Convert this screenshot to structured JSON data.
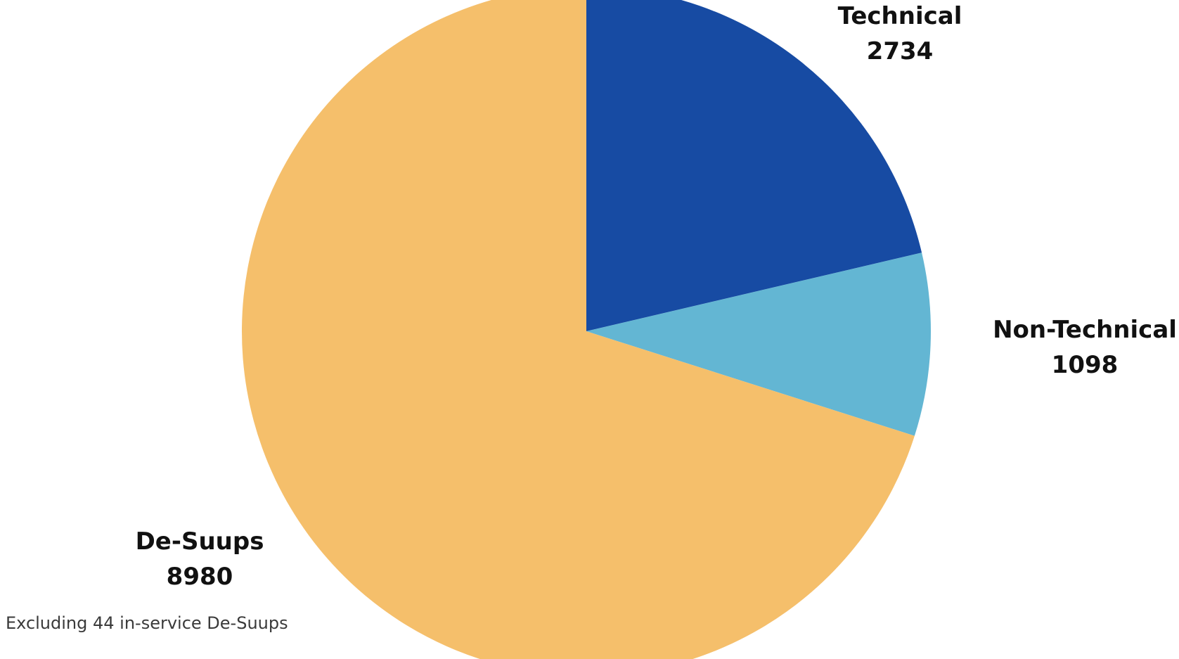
{
  "chart_data": {
    "type": "pie",
    "slices": [
      {
        "label": "Technical",
        "value": 2734,
        "color": "#174ba3"
      },
      {
        "label": "Non-Technical",
        "value": 1098,
        "color": "#63b6d3"
      },
      {
        "label": "De-Suups",
        "value": 8980,
        "color": "#f5bf6b"
      }
    ],
    "start_angle_deg": 0,
    "direction": "clockwise",
    "legend": "none",
    "annotation": "Excluding 44 in-service De-Suups"
  }
}
